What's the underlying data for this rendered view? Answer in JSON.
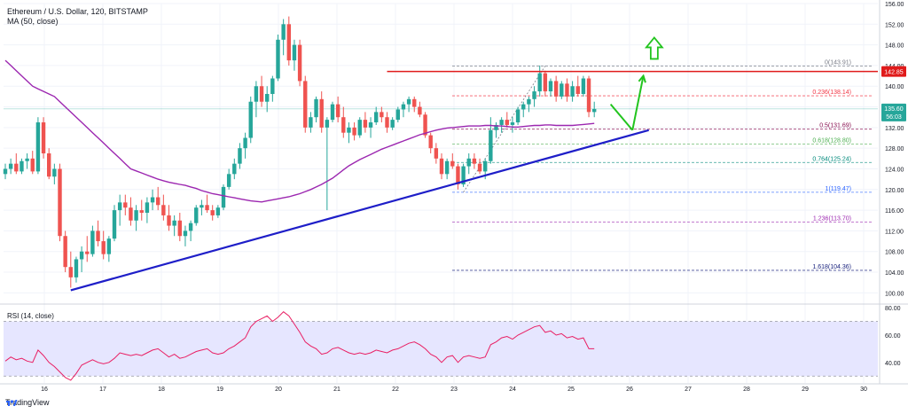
{
  "header": {
    "title": "Ethereum / U.S. Dollar, 120, BITSTAMP",
    "indicator": "MA (50, close)"
  },
  "rsi_label": "RSI (14, close)",
  "brand": "TradingView",
  "colors": {
    "up": "#26a69a",
    "down": "#ef5350",
    "ma": "#9c27b0",
    "trend": "#1e1ec8",
    "resistance": "#e01b1b",
    "arrow": "#22c41e",
    "rsi": "#e91e63",
    "rsi_band": "#e6e6ff"
  },
  "chart_data": {
    "type": "candlestick",
    "title": "Ethereum / U.S. Dollar, 120, BITSTAMP",
    "ylim": [
      98,
      156
    ],
    "x_ticks": [
      "16",
      "17",
      "18",
      "19",
      "20",
      "21",
      "22",
      "23",
      "24",
      "25",
      "26",
      "27",
      "28",
      "29",
      "30"
    ],
    "y_ticks": [
      "100.00",
      "104.00",
      "108.00",
      "112.00",
      "116.00",
      "120.00",
      "124.00",
      "128.00",
      "132.00",
      "136.00",
      "140.00",
      "144.00",
      "148.00",
      "152.00",
      "156.00"
    ],
    "price_label": "135.60",
    "price_label_value": 135.6,
    "countdown": "56:03",
    "resistance_label": "142.85",
    "resistance_value": 142.85,
    "candles": [
      [
        0,
        123,
        125,
        122,
        124
      ],
      [
        1,
        124,
        126,
        123,
        125
      ],
      [
        2,
        125,
        127,
        123,
        123.5
      ],
      [
        3,
        123.5,
        126,
        123,
        125.5
      ],
      [
        4,
        125.5,
        127,
        124,
        126
      ],
      [
        5,
        126,
        127.5,
        123,
        123.5
      ],
      [
        6,
        123.5,
        134,
        123,
        133
      ],
      [
        7,
        133,
        134,
        126,
        127
      ],
      [
        8,
        127,
        128,
        122,
        122.5
      ],
      [
        9,
        122.5,
        125,
        121,
        124
      ],
      [
        10,
        124,
        125,
        110,
        111
      ],
      [
        11,
        111,
        112,
        104,
        105
      ],
      [
        12,
        105,
        108,
        101,
        103
      ],
      [
        13,
        103,
        107,
        102,
        106.5
      ],
      [
        14,
        106.5,
        109,
        104,
        108
      ],
      [
        15,
        108,
        111,
        106,
        107.5
      ],
      [
        16,
        107.5,
        113,
        107,
        112
      ],
      [
        17,
        112,
        114,
        109,
        110
      ],
      [
        18,
        110,
        112,
        106.5,
        107.5
      ],
      [
        19,
        107.5,
        111,
        106,
        110.5
      ],
      [
        20,
        110.5,
        117,
        110,
        116
      ],
      [
        21,
        116,
        119,
        113,
        117.5
      ],
      [
        22,
        117.5,
        119,
        115,
        116.5
      ],
      [
        23,
        116.5,
        118.5,
        113,
        114
      ],
      [
        24,
        114,
        117,
        112,
        116
      ],
      [
        25,
        116,
        118,
        114,
        115.5
      ],
      [
        26,
        115.5,
        118.5,
        113.5,
        117.5
      ],
      [
        27,
        117.5,
        120,
        116,
        118.5
      ],
      [
        28,
        118.5,
        120.5,
        116,
        117
      ],
      [
        29,
        117,
        119,
        114,
        115
      ],
      [
        30,
        115,
        117,
        112,
        113
      ],
      [
        31,
        113,
        115,
        111,
        114
      ],
      [
        32,
        114,
        115.5,
        110,
        111
      ],
      [
        33,
        111,
        113,
        109,
        112
      ],
      [
        34,
        112,
        114,
        110,
        113.5
      ],
      [
        35,
        113.5,
        117,
        113,
        116.5
      ],
      [
        36,
        116.5,
        118,
        115,
        117
      ],
      [
        37,
        117,
        119,
        115.5,
        116
      ],
      [
        38,
        116,
        117,
        114,
        115
      ],
      [
        39,
        115,
        117,
        114.5,
        116.5
      ],
      [
        40,
        116.5,
        121,
        116,
        120.5
      ],
      [
        41,
        120.5,
        124,
        120,
        123
      ],
      [
        42,
        123,
        126,
        122,
        125
      ],
      [
        43,
        125,
        129,
        124,
        128
      ],
      [
        44,
        128,
        131,
        126,
        130
      ],
      [
        45,
        130,
        138,
        129,
        137
      ],
      [
        46,
        137,
        141,
        134,
        140
      ],
      [
        47,
        140,
        142,
        136,
        137
      ],
      [
        48,
        137,
        140,
        135,
        138.5
      ],
      [
        49,
        138.5,
        142,
        137,
        141.5
      ],
      [
        50,
        141.5,
        150,
        141,
        149
      ],
      [
        51,
        149,
        153,
        146,
        152
      ],
      [
        52,
        152,
        153.5,
        144,
        145
      ],
      [
        53,
        145,
        149,
        143,
        148
      ],
      [
        54,
        148,
        149,
        140,
        141
      ],
      [
        55,
        141,
        142,
        131,
        132
      ],
      [
        56,
        132,
        135,
        131,
        134
      ],
      [
        57,
        134,
        138,
        133,
        137.5
      ],
      [
        58,
        137.5,
        139,
        131,
        132
      ],
      [
        59,
        132,
        134,
        116,
        133.5
      ],
      [
        60,
        133.5,
        137,
        133,
        136.5
      ],
      [
        61,
        136.5,
        138,
        133,
        134
      ],
      [
        62,
        134,
        136,
        130,
        131
      ],
      [
        63,
        131,
        133,
        129,
        132
      ],
      [
        64,
        132,
        133,
        129.5,
        130.5
      ],
      [
        65,
        130.5,
        134,
        130,
        133.5
      ],
      [
        66,
        133.5,
        135,
        131,
        132
      ],
      [
        67,
        132,
        134,
        130,
        133
      ],
      [
        68,
        133,
        136,
        132.5,
        135
      ],
      [
        69,
        135,
        136,
        133,
        134
      ],
      [
        70,
        134,
        135,
        131,
        132
      ],
      [
        71,
        132,
        134,
        131.5,
        133.5
      ],
      [
        72,
        133.5,
        136,
        133,
        135.5
      ],
      [
        73,
        135.5,
        137,
        134,
        136.5
      ],
      [
        74,
        136.5,
        138,
        135,
        137.5
      ],
      [
        75,
        137.5,
        138,
        135,
        136
      ],
      [
        76,
        136,
        137,
        134,
        134.5
      ],
      [
        77,
        134.5,
        135,
        130,
        130.5
      ],
      [
        78,
        130.5,
        131,
        127,
        128
      ],
      [
        79,
        128,
        129,
        125,
        126
      ],
      [
        80,
        126,
        127,
        122,
        123
      ],
      [
        81,
        123,
        126,
        122,
        125.5
      ],
      [
        82,
        125.5,
        127,
        124,
        124.5
      ],
      [
        83,
        124.5,
        125,
        120,
        121
      ],
      [
        84,
        121,
        125,
        120.5,
        124.5
      ],
      [
        85,
        124.5,
        127,
        123,
        126
      ],
      [
        86,
        126,
        127,
        124,
        125
      ],
      [
        87,
        125,
        126,
        123,
        123.5
      ],
      [
        88,
        123.5,
        126,
        122,
        125.5
      ],
      [
        89,
        125.5,
        134,
        125,
        131.5
      ],
      [
        90,
        131.5,
        133,
        130,
        132.5
      ],
      [
        91,
        132.5,
        134,
        131,
        133.5
      ],
      [
        92,
        133.5,
        135,
        132,
        132.5
      ],
      [
        93,
        132.5,
        134,
        131,
        133
      ],
      [
        94,
        133,
        136,
        132.5,
        135.5
      ],
      [
        95,
        135.5,
        137,
        134,
        136.5
      ],
      [
        96,
        136.5,
        138,
        135,
        137.5
      ],
      [
        97,
        137.5,
        140,
        136,
        139
      ],
      [
        98,
        139,
        144,
        138,
        142.5
      ],
      [
        99,
        142.5,
        143,
        138,
        139
      ],
      [
        100,
        139,
        141.5,
        138,
        141
      ],
      [
        101,
        141,
        142,
        137,
        138
      ],
      [
        102,
        138,
        141,
        137.5,
        140.5
      ],
      [
        103,
        140.5,
        141.5,
        137,
        138
      ],
      [
        104,
        138,
        141,
        137,
        140
      ],
      [
        105,
        140,
        142,
        138,
        138.5
      ],
      [
        106,
        138.5,
        142,
        138,
        141.5
      ],
      [
        107,
        141.5,
        142,
        134,
        135
      ],
      [
        108,
        135,
        137,
        134,
        135.6
      ]
    ],
    "ma_values": [
      145,
      144,
      143,
      142,
      141,
      140,
      139.5,
      139,
      138.5,
      138,
      137,
      136,
      135,
      134,
      133,
      132,
      131,
      130,
      129,
      128,
      127,
      126,
      125,
      124,
      123.6,
      123.2,
      122.8,
      122.4,
      122,
      121.7,
      121.4,
      121.2,
      121,
      120.8,
      120.5,
      120.2,
      119.8,
      119.5,
      119.2,
      119,
      118.8,
      118.6,
      118.4,
      118.2,
      118,
      117.8,
      117.7,
      117.6,
      117.8,
      118,
      118.2,
      118.4,
      118.6,
      118.9,
      119.2,
      119.6,
      120,
      120.5,
      121,
      121.6,
      122.2,
      123,
      123.8,
      124.6,
      125.2,
      125.8,
      126.3,
      126.8,
      127.3,
      127.8,
      128.2,
      128.6,
      129,
      129.4,
      129.8,
      130.2,
      130.6,
      130.9,
      131.2,
      131.5,
      131.7,
      131.9,
      132,
      132.1,
      132.2,
      132.3,
      132.3,
      132.3,
      132.4,
      132.4,
      132.3,
      132.3,
      132.2,
      132.1,
      132.1,
      132.2,
      132.3,
      132.4,
      132.4,
      132.5,
      132.5,
      132.4,
      132.4,
      132.4,
      132.4,
      132.5,
      132.6,
      132.7,
      132.8
    ],
    "fib_levels": [
      {
        "label": "0(143.91)",
        "value": 143.91,
        "color": "#787b86"
      },
      {
        "label": "0.236(138.14)",
        "value": 138.14,
        "color": "#f23645"
      },
      {
        "label": "0.5(131.69)",
        "value": 131.69,
        "color": "#880e4f"
      },
      {
        "label": "0.618(128.80)",
        "value": 128.8,
        "color": "#4caf50"
      },
      {
        "label": "0.764(125.24)",
        "value": 125.24,
        "color": "#00897b"
      },
      {
        "label": "1(119.47)",
        "value": 119.47,
        "color": "#2962ff"
      },
      {
        "label": "1.236(113.70)",
        "value": 113.7,
        "color": "#9c27b0"
      },
      {
        "label": "1.618(104.36)",
        "value": 104.36,
        "color": "#1a237e"
      }
    ],
    "trendline": [
      [
        12,
        100.5
      ],
      [
        118,
        131.5
      ]
    ],
    "resistance_range": [
      70,
      118
    ],
    "arrows": [
      {
        "from": [
          111,
          136.5
        ],
        "to": [
          115,
          131.5
        ],
        "head": false
      },
      {
        "from": [
          115,
          131.5
        ],
        "to": [
          117,
          142
        ],
        "head": true
      }
    ],
    "up_arrow": {
      "x": 119,
      "y": 147
    },
    "rsi": {
      "ylim": [
        25,
        82
      ],
      "y_ticks": [
        "40.00",
        "60.00",
        "80.00"
      ],
      "band": [
        30,
        70
      ],
      "values": [
        41,
        44,
        42,
        43,
        41,
        40,
        49,
        45,
        40,
        37,
        33,
        29,
        27,
        32,
        38,
        40,
        42,
        40,
        39,
        40,
        43,
        47,
        46,
        45,
        46,
        45,
        47,
        49,
        50,
        47,
        44,
        46,
        43,
        44,
        46,
        48,
        49,
        50,
        47,
        46,
        47,
        50,
        52,
        55,
        58,
        66,
        70,
        72,
        74,
        70,
        73,
        77,
        74,
        68,
        62,
        55,
        52,
        50,
        46,
        47,
        50,
        51,
        49,
        47,
        46,
        47,
        46,
        47,
        49,
        48,
        47,
        49,
        50,
        52,
        54,
        55,
        53,
        50,
        46,
        44,
        40,
        44,
        45,
        40,
        44,
        45,
        44,
        43,
        44,
        53,
        55,
        58,
        59,
        57,
        60,
        62,
        64,
        66,
        67,
        62,
        63,
        60,
        61,
        58,
        59,
        57,
        58,
        50,
        50
      ]
    }
  }
}
